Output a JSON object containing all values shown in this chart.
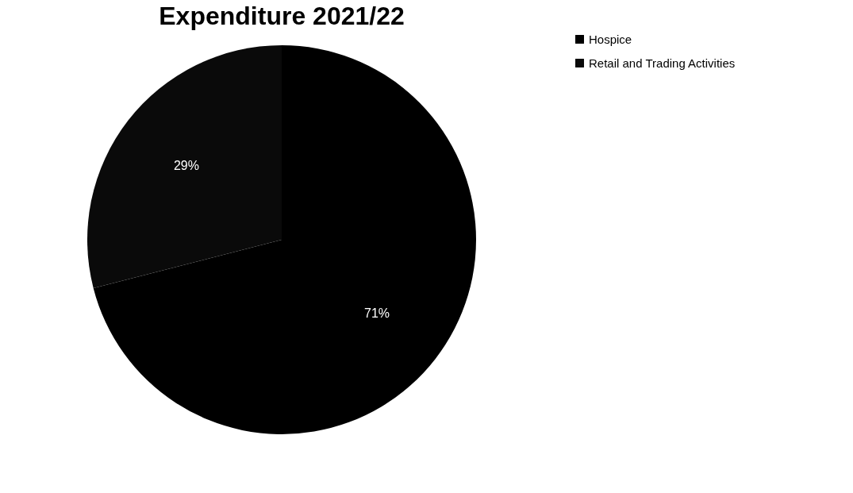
{
  "chart_data": {
    "type": "pie",
    "title": "Expenditure 2021/22",
    "categories": [
      "Hospice",
      "Retail and Trading Activities"
    ],
    "values": [
      71,
      29
    ],
    "colors": [
      "#000000",
      "#0a0a0a"
    ],
    "value_labels": [
      "71%",
      "29%"
    ],
    "legend": "right"
  }
}
